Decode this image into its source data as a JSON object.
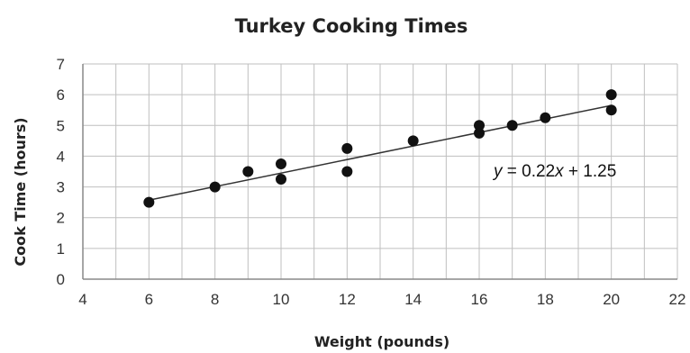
{
  "chart_data": {
    "type": "scatter",
    "title": "Turkey Cooking Times",
    "xlabel": "Weight (pounds)",
    "ylabel": "Cook Time (hours)",
    "xlim": [
      4,
      22
    ],
    "ylim": [
      0,
      7
    ],
    "xticks": [
      4,
      6,
      8,
      10,
      12,
      14,
      16,
      18,
      20,
      22
    ],
    "yticks": [
      0,
      1,
      2,
      3,
      4,
      5,
      6,
      7
    ],
    "x_minor_step": 1,
    "grid": true,
    "points": [
      {
        "x": 6,
        "y": 2.5
      },
      {
        "x": 8,
        "y": 3.0
      },
      {
        "x": 9,
        "y": 3.5
      },
      {
        "x": 10,
        "y": 3.25
      },
      {
        "x": 10,
        "y": 3.75
      },
      {
        "x": 12,
        "y": 3.5
      },
      {
        "x": 12,
        "y": 4.25
      },
      {
        "x": 14,
        "y": 4.5
      },
      {
        "x": 16,
        "y": 4.75
      },
      {
        "x": 16,
        "y": 5.0
      },
      {
        "x": 17,
        "y": 5.0
      },
      {
        "x": 18,
        "y": 5.25
      },
      {
        "x": 20,
        "y": 5.5
      },
      {
        "x": 20,
        "y": 6.0
      }
    ],
    "trendline": {
      "slope": 0.22,
      "intercept": 1.25,
      "x_range": [
        6,
        20
      ],
      "equation_parts": [
        "y",
        " = 0.22",
        "x",
        " + 1.25"
      ]
    },
    "colors": {
      "point": "#111111",
      "trendline": "#333333",
      "grid": "#bfbfbf",
      "axis": "#888888"
    }
  }
}
